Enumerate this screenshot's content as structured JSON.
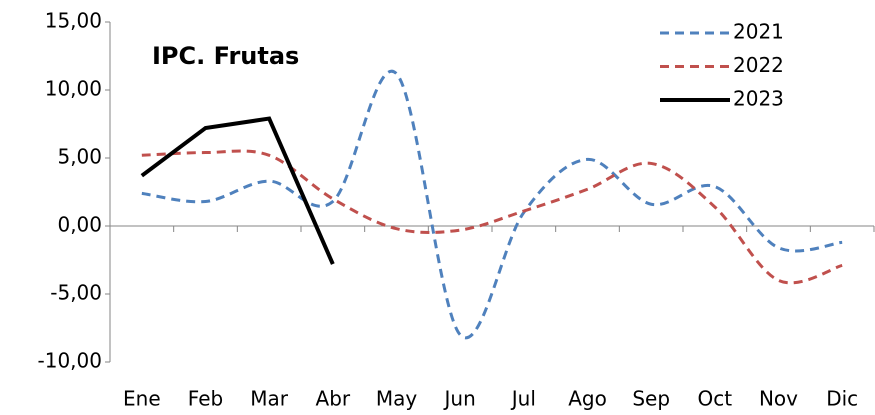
{
  "chart_data": {
    "type": "line",
    "title": "IPC. Frutas",
    "categories": [
      "Ene",
      "Feb",
      "Mar",
      "Abr",
      "May",
      "Jun",
      "Jul",
      "Ago",
      "Sep",
      "Oct",
      "Nov",
      "Dic"
    ],
    "series": [
      {
        "name": "2021",
        "color": "#4f81bd",
        "style": "dashed",
        "smooth": true,
        "values": [
          2.4,
          1.8,
          3.3,
          1.8,
          11.2,
          -8.0,
          1.0,
          4.9,
          1.6,
          2.9,
          -1.6,
          -1.2
        ]
      },
      {
        "name": "2022",
        "color": "#c0504d",
        "style": "dashed",
        "smooth": true,
        "values": [
          5.2,
          5.4,
          5.2,
          2.0,
          -0.2,
          -0.3,
          1.1,
          2.7,
          4.6,
          1.4,
          -4.0,
          -2.9
        ]
      },
      {
        "name": "2023",
        "color": "#000000",
        "style": "solid",
        "smooth": false,
        "values": [
          3.7,
          7.2,
          7.9,
          -2.8,
          null,
          null,
          null,
          null,
          null,
          null,
          null,
          null
        ]
      }
    ],
    "ylim": [
      -10,
      15
    ],
    "yticks": [
      {
        "value": -10,
        "label": "-10,00"
      },
      {
        "value": -5,
        "label": "-5,00"
      },
      {
        "value": 0,
        "label": "0,00"
      },
      {
        "value": 5,
        "label": "5,00"
      },
      {
        "value": 10,
        "label": "10,00"
      },
      {
        "value": 15,
        "label": "15,00"
      }
    ],
    "grid": false,
    "legend": "top-right"
  }
}
